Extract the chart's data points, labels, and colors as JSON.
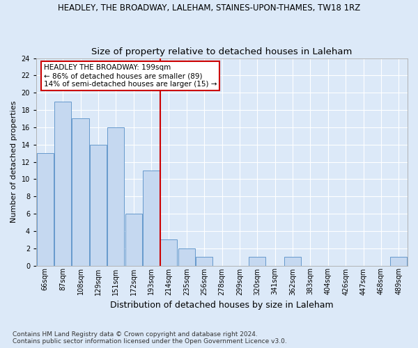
{
  "title1": "HEADLEY, THE BROADWAY, LALEHAM, STAINES-UPON-THAMES, TW18 1RZ",
  "title2": "Size of property relative to detached houses in Laleham",
  "xlabel": "Distribution of detached houses by size in Laleham",
  "ylabel": "Number of detached properties",
  "bar_labels": [
    "66sqm",
    "87sqm",
    "108sqm",
    "129sqm",
    "151sqm",
    "172sqm",
    "193sqm",
    "214sqm",
    "235sqm",
    "256sqm",
    "278sqm",
    "299sqm",
    "320sqm",
    "341sqm",
    "362sqm",
    "383sqm",
    "404sqm",
    "426sqm",
    "447sqm",
    "468sqm",
    "489sqm"
  ],
  "bar_values": [
    13,
    19,
    17,
    14,
    16,
    6,
    11,
    3,
    2,
    1,
    0,
    0,
    1,
    0,
    1,
    0,
    0,
    0,
    0,
    0,
    1
  ],
  "bar_color": "#c5d8f0",
  "bar_edgecolor": "#6699cc",
  "background_color": "#dce9f8",
  "plot_bg_color": "#dce9f8",
  "grid_color": "#ffffff",
  "vline_x": 6.5,
  "vline_color": "#cc0000",
  "annotation_text": "HEADLEY THE BROADWAY: 199sqm\n← 86% of detached houses are smaller (89)\n14% of semi-detached houses are larger (15) →",
  "annotation_box_facecolor": "#ffffff",
  "annotation_box_edgecolor": "#cc0000",
  "ylim": [
    0,
    24
  ],
  "yticks": [
    0,
    2,
    4,
    6,
    8,
    10,
    12,
    14,
    16,
    18,
    20,
    22,
    24
  ],
  "footnote": "Contains HM Land Registry data © Crown copyright and database right 2024.\nContains public sector information licensed under the Open Government Licence v3.0.",
  "title1_fontsize": 8.5,
  "title2_fontsize": 9.5,
  "xlabel_fontsize": 9,
  "ylabel_fontsize": 8,
  "tick_fontsize": 7,
  "annotation_fontsize": 7.5,
  "footnote_fontsize": 6.5
}
